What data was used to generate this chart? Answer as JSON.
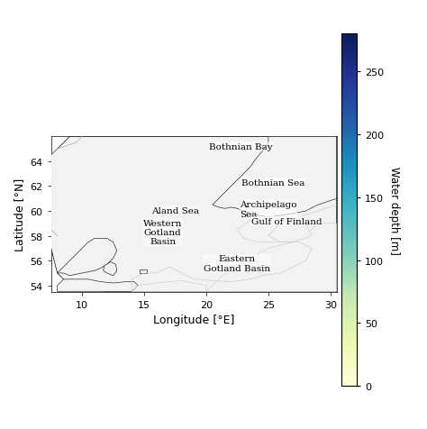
{
  "xlabel": "Longitude [°E]",
  "ylabel": "Latitude [°N]",
  "colorbar_label": "Water depth [m]",
  "xlim": [
    7.5,
    30.5
  ],
  "ylim": [
    53.5,
    66.0
  ],
  "xticks": [
    10,
    15,
    20,
    25,
    30
  ],
  "yticks": [
    54,
    56,
    58,
    60,
    62,
    64
  ],
  "colorbar_ticks": [
    0,
    50,
    100,
    150,
    200,
    250
  ],
  "cmap": "YlGnBu",
  "vmin": 0,
  "vmax": 280,
  "land_color": "#f2f2f2",
  "bg_color": "#ffffff",
  "border_color": "#cccccc",
  "labels": [
    {
      "text": "Bothnian Bay",
      "lon": 22.8,
      "lat": 65.2,
      "ha": "center",
      "va": "center",
      "fontsize": 7.5
    },
    {
      "text": "Bothnian Sea",
      "lon": 22.8,
      "lat": 62.3,
      "ha": "left",
      "va": "center",
      "fontsize": 7.5
    },
    {
      "text": "Archipelago\nSea",
      "lon": 22.7,
      "lat": 60.15,
      "ha": "left",
      "va": "center",
      "fontsize": 7.5
    },
    {
      "text": "Aland Sea",
      "lon": 17.5,
      "lat": 60.05,
      "ha": "center",
      "va": "center",
      "fontsize": 7.5
    },
    {
      "text": "Western\nGotland\nBasin",
      "lon": 16.5,
      "lat": 58.3,
      "ha": "center",
      "va": "center",
      "fontsize": 7.5
    },
    {
      "text": "Gulf of Finland",
      "lon": 26.5,
      "lat": 59.2,
      "ha": "center",
      "va": "center",
      "fontsize": 7.5
    },
    {
      "text": "Eastern\nGotland Basin",
      "lon": 22.5,
      "lat": 55.8,
      "ha": "center",
      "va": "center",
      "fontsize": 7.5
    }
  ],
  "figsize": [
    4.74,
    4.77
  ],
  "dpi": 100
}
